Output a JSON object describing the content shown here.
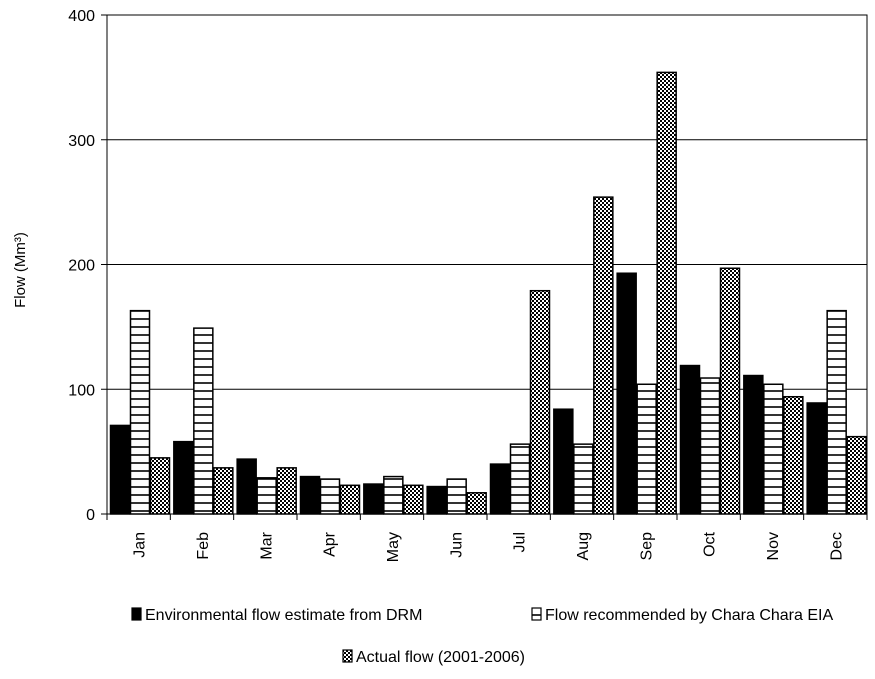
{
  "chart_data": {
    "type": "bar",
    "title": "",
    "xlabel": "",
    "ylabel": "Flow (Mm³)",
    "ylim": [
      0,
      400
    ],
    "yticks": [
      0,
      100,
      200,
      300,
      400
    ],
    "grid": true,
    "legend_position": "bottom",
    "categories": [
      "Jan",
      "Feb",
      "Mar",
      "Apr",
      "May",
      "Jun",
      "Jul",
      "Aug",
      "Sep",
      "Oct",
      "Nov",
      "Dec"
    ],
    "series": [
      {
        "name": "Environmental flow estimate from DRM",
        "pattern": "solid",
        "values": [
          71,
          58,
          44,
          30,
          24,
          22,
          40,
          84,
          193,
          119,
          111,
          89
        ]
      },
      {
        "name": "Flow recommended by Chara Chara EIA",
        "pattern": "horizontal-lines",
        "values": [
          163,
          149,
          29,
          28,
          30,
          28,
          56,
          56,
          104,
          109,
          104,
          163
        ]
      },
      {
        "name": "Actual flow (2001-2006)",
        "pattern": "checker",
        "values": [
          45,
          37,
          37,
          23,
          23,
          17,
          179,
          254,
          354,
          197,
          94,
          62
        ]
      }
    ]
  }
}
